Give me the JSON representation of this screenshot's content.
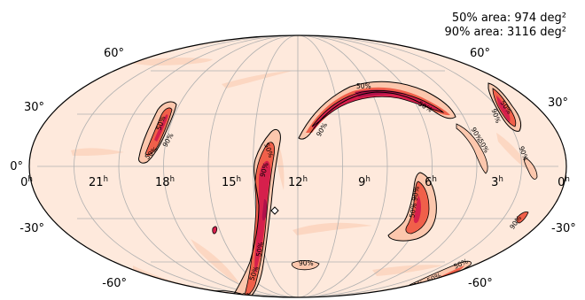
{
  "annotations": {
    "area_50": "50% area: 974 deg²",
    "area_90": "90% area: 3116 deg²"
  },
  "ra_labels": [
    {
      "hours": "0",
      "side": "left"
    },
    {
      "hours": "21"
    },
    {
      "hours": "18"
    },
    {
      "hours": "15"
    },
    {
      "hours": "12"
    },
    {
      "hours": "9"
    },
    {
      "hours": "6"
    },
    {
      "hours": "3"
    },
    {
      "hours": "0",
      "side": "right"
    }
  ],
  "ra_unit": "h",
  "dec_labels": {
    "p60": "60°",
    "p30": "30°",
    "zero": "0°",
    "m30": "-30°",
    "m60": "-60°"
  },
  "contour_labels": {
    "p50": "50%",
    "p90": "90%"
  },
  "colors": {
    "background": "#fee9dc",
    "light": "#fcc7ad",
    "mid": "#f0604a",
    "high": "#d6204c",
    "peak": "#b0114a",
    "grid": "#b0b0b0",
    "outline": "#000000"
  },
  "projection": "mollweide"
}
